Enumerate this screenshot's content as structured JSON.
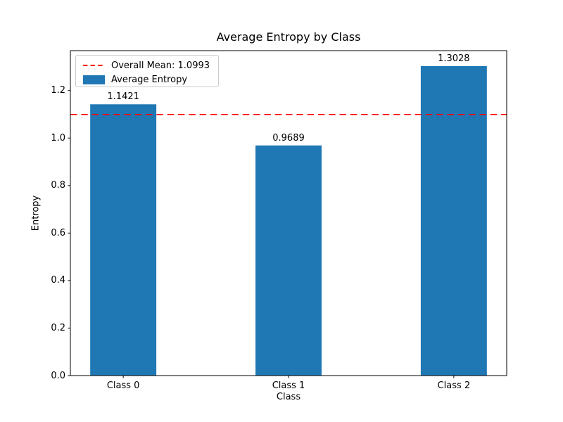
{
  "chart_data": {
    "type": "bar",
    "title": "Average Entropy by Class",
    "xlabel": "Class",
    "ylabel": "Entropy",
    "categories": [
      "Class 0",
      "Class 1",
      "Class 2"
    ],
    "values": [
      1.1421,
      0.9689,
      1.3028
    ],
    "bar_labels": [
      "1.1421",
      "0.9689",
      "1.3028"
    ],
    "bar_color": "#1f77b4",
    "overall_mean": 1.0993,
    "mean_line_color": "#ff0000",
    "mean_line_style": "dashed",
    "yticks": [
      0.0,
      0.2,
      0.4,
      0.6,
      0.8,
      1.0,
      1.2
    ],
    "ylim": [
      0,
      1.368
    ],
    "xlim": [
      -0.32,
      2.32
    ],
    "bar_width_units": 0.4,
    "grid": false,
    "legend": {
      "position": "upper left",
      "entries": [
        {
          "label": "Overall Mean: 1.0993",
          "type": "line",
          "color": "#ff0000"
        },
        {
          "label": "Average Entropy",
          "type": "patch",
          "color": "#1f77b4"
        }
      ]
    }
  }
}
